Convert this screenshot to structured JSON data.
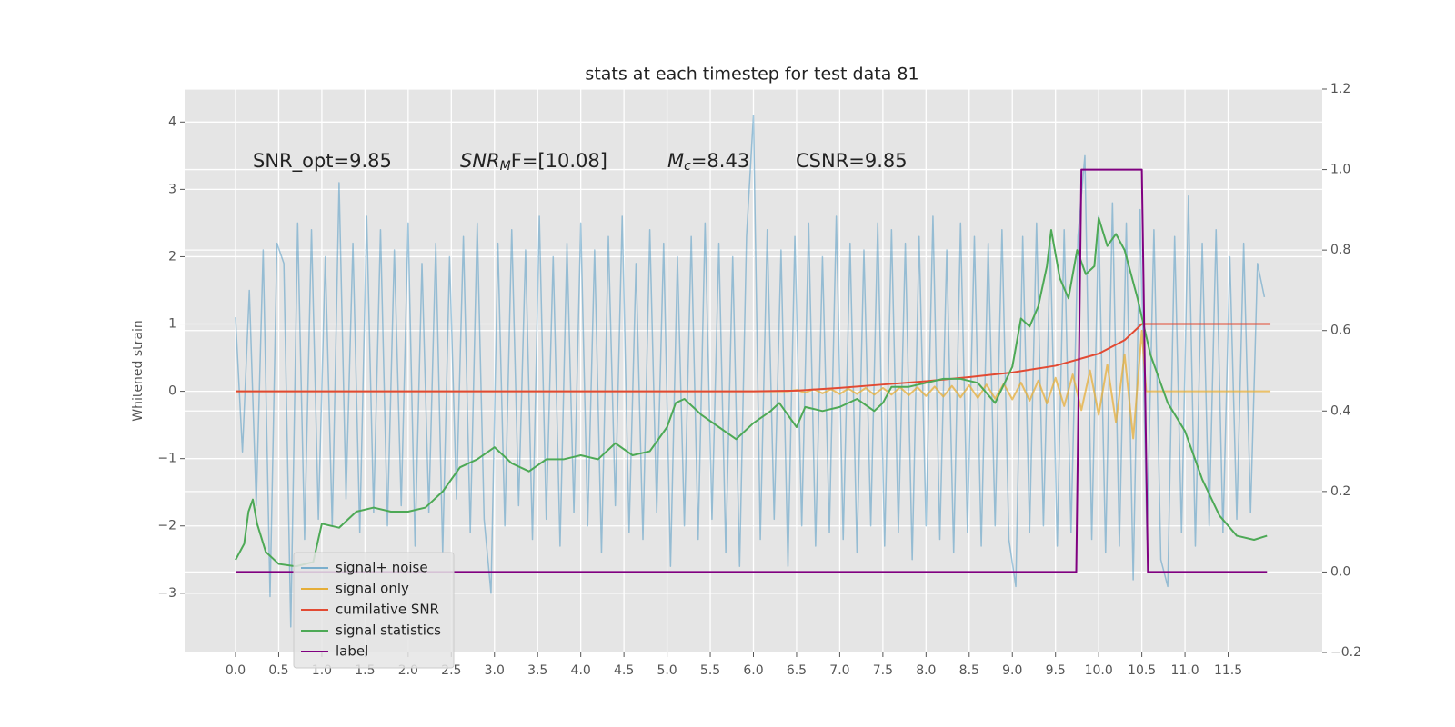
{
  "chart_data": {
    "type": "line",
    "title": "stats at each timestep for test data 81",
    "ylabel": "Whitened strain",
    "xlim": [
      -0.59,
      12.59
    ],
    "ylim": [
      -3.88,
      4.49
    ],
    "y2lim": [
      -0.2,
      1.2
    ],
    "xticks": [
      {
        "value": 0,
        "label": "0.0"
      },
      0.5,
      {
        "value": 1,
        "label": "1.0"
      },
      1.5,
      {
        "value": 2,
        "label": "2.0"
      },
      2.5,
      {
        "value": 3,
        "label": "3.0"
      },
      3.5,
      {
        "value": 4,
        "label": "4.0"
      },
      4.5,
      {
        "value": 5,
        "label": "5.0"
      },
      5.5,
      {
        "value": 6,
        "label": "6.0"
      },
      6.5,
      {
        "value": 7,
        "label": "7.0"
      },
      7.5,
      {
        "value": 8,
        "label": "8.0"
      },
      8.5,
      {
        "value": 9,
        "label": "9.0"
      },
      9.5,
      {
        "value": 10,
        "label": "10.0"
      },
      10.5,
      {
        "value": 11,
        "label": "11.0"
      },
      11.5
    ],
    "yticks": [
      {
        "value": -3,
        "label": "−3"
      },
      {
        "value": -2,
        "label": "−2"
      },
      {
        "value": -1,
        "label": "−1"
      },
      0,
      1,
      2,
      3,
      4
    ],
    "y2ticks": [
      {
        "value": -0.2,
        "label": "−0.2"
      },
      {
        "value": 0,
        "label": "0.0"
      },
      0.2,
      0.4,
      0.6,
      0.8,
      {
        "value": 1,
        "label": "1.0"
      },
      1.2
    ],
    "grid": true,
    "legend": "lower left",
    "annotations": [
      {
        "text": "SNR_opt=9.85"
      },
      {
        "math": "SNR",
        "sub": "M",
        "text": "F=[10.08]"
      },
      {
        "math": "M",
        "sub": "c",
        "text": "=8.43"
      },
      {
        "text": "CSNR=9.85"
      }
    ],
    "series": [
      {
        "name": "signal+ noise",
        "color": "#348ABD",
        "x": [
          0,
          0.08,
          0.16,
          0.24,
          0.32,
          0.4,
          0.48,
          0.56,
          0.64,
          0.72,
          0.8,
          0.88,
          0.96,
          1.04,
          1.12,
          1.2,
          1.28,
          1.36,
          1.44,
          1.52,
          1.6,
          1.68,
          1.76,
          1.84,
          1.92,
          2,
          2.08,
          2.16,
          2.24,
          2.32,
          2.4,
          2.48,
          2.56,
          2.64,
          2.72,
          2.8,
          2.88,
          2.96,
          3.04,
          3.12,
          3.2,
          3.28,
          3.36,
          3.44,
          3.52,
          3.6,
          3.68,
          3.76,
          3.84,
          3.92,
          4,
          4.08,
          4.16,
          4.24,
          4.32,
          4.4,
          4.48,
          4.56,
          4.64,
          4.72,
          4.8,
          4.88,
          4.96,
          5.04,
          5.12,
          5.2,
          5.28,
          5.36,
          5.44,
          5.52,
          5.6,
          5.68,
          5.76,
          5.84,
          5.92,
          6,
          6.08,
          6.16,
          6.24,
          6.32,
          6.4,
          6.48,
          6.56,
          6.64,
          6.72,
          6.8,
          6.88,
          6.96,
          7.04,
          7.12,
          7.2,
          7.28,
          7.36,
          7.44,
          7.52,
          7.6,
          7.68,
          7.76,
          7.84,
          7.92,
          8,
          8.08,
          8.16,
          8.24,
          8.32,
          8.4,
          8.48,
          8.56,
          8.64,
          8.72,
          8.8,
          8.88,
          8.96,
          9.04,
          9.12,
          9.2,
          9.28,
          9.36,
          9.44,
          9.52,
          9.6,
          9.68,
          9.76,
          9.84,
          9.92,
          10,
          10.08,
          10.16,
          10.24,
          10.32,
          10.4,
          10.48,
          10.56,
          10.64,
          10.72,
          10.8,
          10.88,
          10.96,
          11.04,
          11.12,
          11.2,
          11.28,
          11.36,
          11.44,
          11.52,
          11.6,
          11.68,
          11.76,
          11.84,
          11.92
        ],
        "values": [
          1.1,
          -0.9,
          1.5,
          -1.7,
          2.1,
          -3.05,
          2.2,
          1.9,
          -3.5,
          2.5,
          -2.2,
          2.4,
          -1.9,
          2.0,
          -2.0,
          3.1,
          -1.6,
          2.2,
          -2.1,
          2.6,
          -1.8,
          2.4,
          -2.0,
          2.1,
          -1.7,
          2.5,
          -2.3,
          1.9,
          -1.8,
          2.2,
          -2.4,
          2.0,
          -1.6,
          2.3,
          -2.1,
          2.5,
          -1.9,
          -3.0,
          2.2,
          -2.0,
          2.4,
          -1.7,
          2.1,
          -2.2,
          2.6,
          -1.9,
          2.0,
          -2.3,
          2.2,
          -1.8,
          2.5,
          -2.0,
          2.1,
          -2.4,
          2.3,
          -1.7,
          2.6,
          -2.1,
          1.9,
          -2.2,
          2.4,
          -1.8,
          2.2,
          -2.6,
          2.0,
          -2.0,
          2.3,
          -2.2,
          2.5,
          -1.9,
          2.2,
          -2.4,
          2.0,
          -2.6,
          2.3,
          4.1,
          -2.2,
          2.4,
          -1.9,
          2.1,
          -2.6,
          2.3,
          -2.0,
          2.5,
          -2.3,
          2.0,
          -2.1,
          2.6,
          -2.2,
          2.2,
          -2.4,
          2.1,
          -2.0,
          2.5,
          -2.3,
          2.4,
          -2.1,
          2.2,
          -2.5,
          2.3,
          -2.0,
          2.6,
          -2.2,
          2.1,
          -2.4,
          2.5,
          -2.1,
          2.3,
          -2.3,
          2.2,
          -2.0,
          2.4,
          -2.2,
          -2.9,
          2.3,
          -2.1,
          2.5,
          -2.0,
          2.2,
          -2.3,
          2.4,
          -2.1,
          2.3,
          3.5,
          -2.2,
          2.6,
          -2.4,
          2.8,
          -2.3,
          2.5,
          -2.8,
          2.7,
          -2.2,
          2.4,
          -2.5,
          -2.9,
          2.3,
          -2.1,
          2.9,
          -2.3,
          2.2,
          -2.0,
          2.4,
          -2.1,
          2.0,
          -1.9,
          2.2,
          -1.8,
          1.9,
          1.4
        ]
      },
      {
        "name": "signal only",
        "color": "#E5AE38",
        "x": [
          0,
          6.4,
          6.5,
          6.6,
          6.7,
          6.8,
          6.9,
          7.0,
          7.1,
          7.2,
          7.3,
          7.4,
          7.5,
          7.6,
          7.7,
          7.8,
          7.9,
          8.0,
          8.1,
          8.2,
          8.3,
          8.4,
          8.5,
          8.6,
          8.7,
          8.8,
          8.9,
          9.0,
          9.1,
          9.2,
          9.3,
          9.4,
          9.5,
          9.6,
          9.7,
          9.8,
          9.9,
          10.0,
          10.1,
          10.2,
          10.3,
          10.4,
          10.5,
          10.55,
          11.99
        ],
        "values": [
          0,
          0,
          0.02,
          -0.02,
          0.03,
          -0.03,
          0.03,
          -0.04,
          0.04,
          -0.04,
          0.05,
          -0.05,
          0.05,
          -0.05,
          0.06,
          -0.06,
          0.06,
          -0.07,
          0.07,
          -0.08,
          0.08,
          -0.09,
          0.09,
          -0.1,
          0.1,
          -0.11,
          0.11,
          -0.12,
          0.13,
          -0.14,
          0.16,
          -0.18,
          0.2,
          -0.22,
          0.25,
          -0.28,
          0.31,
          -0.35,
          0.4,
          -0.46,
          0.55,
          -0.7,
          0.9,
          0,
          0
        ]
      },
      {
        "name": "cumilative SNR",
        "color": "#E24A33",
        "x": [
          0,
          6.0,
          6.5,
          7.0,
          7.5,
          8.0,
          8.5,
          9.0,
          9.5,
          10.0,
          10.3,
          10.5,
          11.99
        ],
        "values": [
          0,
          0,
          0.01,
          0.05,
          0.1,
          0.15,
          0.21,
          0.28,
          0.38,
          0.56,
          0.76,
          1.0,
          1.0
        ]
      },
      {
        "name": "signal statistics",
        "color": "#4DA956",
        "axis": "y2",
        "x": [
          0,
          0.1,
          0.15,
          0.2,
          0.25,
          0.35,
          0.5,
          0.7,
          0.9,
          1.0,
          1.2,
          1.4,
          1.6,
          1.8,
          2.0,
          2.2,
          2.4,
          2.6,
          2.8,
          3.0,
          3.2,
          3.4,
          3.6,
          3.8,
          4.0,
          4.2,
          4.4,
          4.6,
          4.8,
          5.0,
          5.1,
          5.2,
          5.4,
          5.6,
          5.8,
          6.0,
          6.2,
          6.3,
          6.5,
          6.6,
          6.8,
          7.0,
          7.2,
          7.4,
          7.5,
          7.6,
          7.8,
          8.0,
          8.2,
          8.4,
          8.6,
          8.8,
          9.0,
          9.1,
          9.2,
          9.3,
          9.4,
          9.45,
          9.55,
          9.65,
          9.75,
          9.85,
          9.95,
          10.0,
          10.1,
          10.2,
          10.3,
          10.45,
          10.6,
          10.8,
          11.0,
          11.2,
          11.4,
          11.6,
          11.8,
          11.95
        ],
        "values": [
          0.03,
          0.07,
          0.15,
          0.18,
          0.12,
          0.05,
          0.02,
          0.014,
          0.025,
          0.12,
          0.11,
          0.15,
          0.16,
          0.15,
          0.15,
          0.16,
          0.2,
          0.26,
          0.28,
          0.31,
          0.27,
          0.25,
          0.28,
          0.28,
          0.29,
          0.28,
          0.32,
          0.29,
          0.3,
          0.36,
          0.42,
          0.43,
          0.39,
          0.36,
          0.33,
          0.37,
          0.4,
          0.42,
          0.36,
          0.41,
          0.4,
          0.41,
          0.43,
          0.4,
          0.42,
          0.46,
          0.46,
          0.47,
          0.48,
          0.48,
          0.47,
          0.42,
          0.51,
          0.63,
          0.61,
          0.66,
          0.76,
          0.85,
          0.73,
          0.68,
          0.8,
          0.74,
          0.76,
          0.88,
          0.81,
          0.84,
          0.8,
          0.68,
          0.54,
          0.42,
          0.35,
          0.23,
          0.14,
          0.09,
          0.08,
          0.09
        ]
      },
      {
        "name": "label",
        "color": "#800080",
        "axis": "y2",
        "x": [
          0,
          9.74,
          9.8,
          10.5,
          10.57,
          11.95
        ],
        "values": [
          0,
          0,
          1,
          1,
          0,
          0
        ]
      }
    ]
  }
}
